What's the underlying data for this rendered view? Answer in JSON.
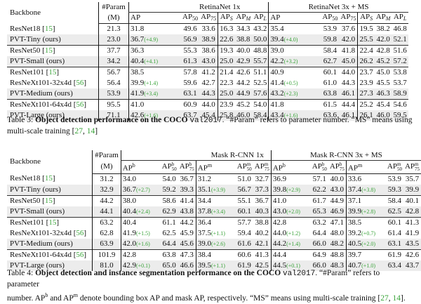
{
  "table3": {
    "headers": {
      "backbone": "Backbone",
      "param_top": "#Param",
      "param_bottom": "(M)",
      "group1": "RetinaNet 1x",
      "group2": "RetinaNet 3x + MS",
      "cols": [
        "AP",
        "AP50",
        "AP75",
        "APS",
        "APM",
        "APL"
      ]
    },
    "rows": [
      {
        "name": "ResNet18",
        "cite": "15",
        "param": "21.3",
        "r1": [
          "31.8",
          "",
          "49.6",
          "33.6",
          "16.3",
          "34.3",
          "43.2"
        ],
        "r2": [
          "35.4",
          "",
          "53.9",
          "37.6",
          "19.5",
          "38.2",
          "46.8"
        ],
        "ours": false
      },
      {
        "name": "PVT-Tiny (ours)",
        "cite": "",
        "param": "23.0",
        "r1": [
          "36.7",
          "(+4.9)",
          "56.9",
          "38.9",
          "22.6",
          "38.8",
          "50.0"
        ],
        "r2": [
          "39.4",
          "(+4.0)",
          "59.8",
          "42.0",
          "25.5",
          "42.0",
          "52.1"
        ],
        "ours": true
      },
      {
        "name": "ResNet50",
        "cite": "15",
        "param": "37.7",
        "r1": [
          "36.3",
          "",
          "55.3",
          "38.6",
          "19.3",
          "40.0",
          "48.8"
        ],
        "r2": [
          "39.0",
          "",
          "58.4",
          "41.8",
          "22.4",
          "42.8",
          "51.6"
        ],
        "ours": false
      },
      {
        "name": "PVT-Small (ours)",
        "cite": "",
        "param": "34.2",
        "r1": [
          "40.4",
          "(+4.1)",
          "61.3",
          "43.0",
          "25.0",
          "42.9",
          "55.7"
        ],
        "r2": [
          "42.2",
          "(+3.2)",
          "62.7",
          "45.0",
          "26.2",
          "45.2",
          "57.2"
        ],
        "ours": true
      },
      {
        "name": "ResNet101",
        "cite": "15",
        "param": "56.7",
        "r1": [
          "38.5",
          "",
          "57.8",
          "41.2",
          "21.4",
          "42.6",
          "51.1"
        ],
        "r2": [
          "40.9",
          "",
          "60.1",
          "44.0",
          "23.7",
          "45.0",
          "53.8"
        ],
        "ours": false
      },
      {
        "name": "ResNeXt101-32x4d",
        "cite": "56",
        "param": "56.4",
        "r1": [
          "39.9",
          "(+1.4)",
          "59.6",
          "42.7",
          "22.3",
          "44.2",
          "52.5"
        ],
        "r2": [
          "41.4",
          "(+0.5)",
          "61.0",
          "44.3",
          "23.9",
          "45.5",
          "53.7"
        ],
        "ours": false
      },
      {
        "name": "PVT-Medium (ours)",
        "cite": "",
        "param": "53.9",
        "r1": [
          "41.9",
          "(+3.4)",
          "63.1",
          "44.3",
          "25.0",
          "44.9",
          "57.6"
        ],
        "r2": [
          "43.2",
          "(+2.3)",
          "63.8",
          "46.1",
          "27.3",
          "46.3",
          "58.9"
        ],
        "ours": true
      },
      {
        "name": "ResNeXt101-64x4d",
        "cite": "56",
        "param": "95.5",
        "r1": [
          "41.0",
          "",
          "60.9",
          "44.0",
          "23.9",
          "45.2",
          "54.0"
        ],
        "r2": [
          "41.8",
          "",
          "61.5",
          "44.4",
          "25.2",
          "45.4",
          "54.6"
        ],
        "ours": false
      },
      {
        "name": "PVT-Large (ours)",
        "cite": "",
        "param": "71.1",
        "r1": [
          "42.6",
          "(+1.6)",
          "63.7",
          "45.4",
          "25.8",
          "46.0",
          "58.4"
        ],
        "r2": [
          "43.4",
          "(+1.6)",
          "63.6",
          "46.1",
          "26.1",
          "46.0",
          "59.5"
        ],
        "ours": true
      }
    ],
    "caption": {
      "label": "Table 3:",
      "bold": "Object detection performance on the COCO",
      "mono": "val2017",
      "rest1": ". “#Param” refers to parameter number. “MS” means using",
      "rest2": "multi-scale training [",
      "c1": "27",
      "sep": ", ",
      "c2": "14",
      "end": "]"
    }
  },
  "table4": {
    "headers": {
      "backbone": "Backbone",
      "param_top": "#Param",
      "param_bottom": "(M)",
      "group1": "Mask R-CNN 1x",
      "group2": "Mask R-CNN 3x + MS",
      "cols": [
        "APb",
        "APb50",
        "APb75",
        "APm",
        "APm50",
        "APm75"
      ]
    },
    "rows": [
      {
        "name": "ResNet18",
        "cite": "15",
        "param": "31.2",
        "r1": [
          "34.0",
          "",
          "54.0",
          "36.7",
          "31.2",
          "",
          "51.0",
          "32.7"
        ],
        "r2": [
          "36.9",
          "",
          "57.1",
          "40.0",
          "33.6",
          "",
          "53.9",
          "35.7"
        ],
        "ours": false
      },
      {
        "name": "PVT-Tiny (ours)",
        "cite": "",
        "param": "32.9",
        "r1": [
          "36.7",
          "(+2.7)",
          "59.2",
          "39.3",
          "35.1",
          "(+3.9)",
          "56.7",
          "37.3"
        ],
        "r2": [
          "39.8",
          "(+2.9)",
          "62.2",
          "43.0",
          "37.4",
          "(+3.8)",
          "59.3",
          "39.9"
        ],
        "ours": true
      },
      {
        "name": "ResNet50",
        "cite": "15",
        "param": "44.2",
        "r1": [
          "38.0",
          "",
          "58.6",
          "41.4",
          "34.4",
          "",
          "55.1",
          "36.7"
        ],
        "r2": [
          "41.0",
          "",
          "61.7",
          "44.9",
          "37.1",
          "",
          "58.4",
          "40.1"
        ],
        "ours": false
      },
      {
        "name": "PVT-Small (ours)",
        "cite": "",
        "param": "44.1",
        "r1": [
          "40.4",
          "(+2.4)",
          "62.9",
          "43.8",
          "37.8",
          "(+3.4)",
          "60.1",
          "40.3"
        ],
        "r2": [
          "43.0",
          "(+2.0)",
          "65.3",
          "46.9",
          "39.9",
          "(+2.8)",
          "62.5",
          "42.8"
        ],
        "ours": true
      },
      {
        "name": "ResNet101",
        "cite": "15",
        "param": "63.2",
        "r1": [
          "40.4",
          "",
          "61.1",
          "44.2",
          "36.4",
          "",
          "57.7",
          "38.8"
        ],
        "r2": [
          "42.8",
          "",
          "63.2",
          "47.1",
          "38.5",
          "",
          "60.1",
          "41.3"
        ],
        "ours": false
      },
      {
        "name": "ResNeXt101-32x4d",
        "cite": "56",
        "param": "62.8",
        "r1": [
          "41.9",
          "(+1.5)",
          "62.5",
          "45.9",
          "37.5",
          "(+1.1)",
          "59.4",
          "40.2"
        ],
        "r2": [
          "44.0",
          "(+1.2)",
          "64.4",
          "48.0",
          "39.2",
          "(+0.7)",
          "61.4",
          "41.9"
        ],
        "ours": false
      },
      {
        "name": "PVT-Medium (ours)",
        "cite": "",
        "param": "63.9",
        "r1": [
          "42.0",
          "(+1.6)",
          "64.4",
          "45.6",
          "39.0",
          "(+2.6)",
          "61.6",
          "42.1"
        ],
        "r2": [
          "44.2",
          "(+1.4)",
          "66.0",
          "48.2",
          "40.5",
          "(+2.0)",
          "63.1",
          "43.5"
        ],
        "ours": true
      },
      {
        "name": "ResNeXt101-64x4d",
        "cite": "56",
        "param": "101.9",
        "r1": [
          "42.8",
          "",
          "63.8",
          "47.3",
          "38.4",
          "",
          "60.6",
          "41.3"
        ],
        "r2": [
          "44.4",
          "",
          "64.9",
          "48.8",
          "39.7",
          "",
          "61.9",
          "42.6"
        ],
        "ours": false
      },
      {
        "name": "PVT-Large (ours)",
        "cite": "",
        "param": "81.0",
        "r1": [
          "42.9",
          "(+0.1)",
          "65.0",
          "46.6",
          "39.5",
          "(+1.1)",
          "61.9",
          "42.5"
        ],
        "r2": [
          "44.5",
          "(+0.1)",
          "66.0",
          "48.3",
          "40.7",
          "(+1.0)",
          "63.4",
          "43.7"
        ],
        "ours": true
      }
    ],
    "caption": {
      "label": "Table 4:",
      "bold": "Object detection and instance segmentation performance on the COCO",
      "mono": "val2017",
      "rest1": ". “#Param” refers to parameter",
      "line2a": "number. AP",
      "sup_b": "b",
      "line2b": " and AP",
      "sup_m": "m",
      "line2c": " denote bounding box AP and mask AP, respectively. “MS” means using multi-scale training [",
      "c1": "27",
      "sep": ", ",
      "c2": "14",
      "end": "]."
    }
  },
  "colors": {
    "gain": "#3aa43a",
    "cite": "#3aa43a",
    "row_highlight": "#ececec"
  }
}
